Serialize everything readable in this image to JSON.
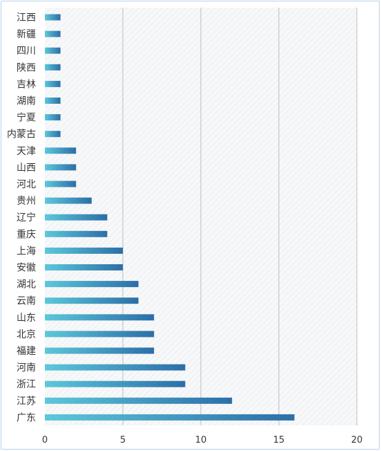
{
  "chart_data": {
    "type": "bar",
    "orientation": "horizontal",
    "categories": [
      "江西",
      "新疆",
      "四川",
      "陕西",
      "吉林",
      "湖南",
      "宁夏",
      "内蒙古",
      "天津",
      "山西",
      "河北",
      "贵州",
      "辽宁",
      "重庆",
      "上海",
      "安徽",
      "湖北",
      "云南",
      "山东",
      "北京",
      "福建",
      "河南",
      "浙江",
      "江苏",
      "广东"
    ],
    "values": [
      1,
      1,
      1,
      1,
      1,
      1,
      1,
      1,
      2,
      2,
      2,
      3,
      4,
      4,
      5,
      5,
      6,
      6,
      7,
      7,
      7,
      9,
      9,
      12,
      16
    ],
    "x_ticks": [
      "0",
      "5",
      "10",
      "15",
      "20"
    ],
    "xlim": [
      0,
      20
    ],
    "grid": "vertical gridlines",
    "legend": "none",
    "title": "",
    "xlabel": "",
    "ylabel": "",
    "colors": {
      "bar_start": "#5cc8da",
      "bar_end": "#2c6ea8",
      "grid": "#bcbcbc",
      "plot_background": "#f7f8f9",
      "hatch": "#e3e6e9",
      "text": "#333333",
      "frame": "#b9d2ec"
    }
  }
}
